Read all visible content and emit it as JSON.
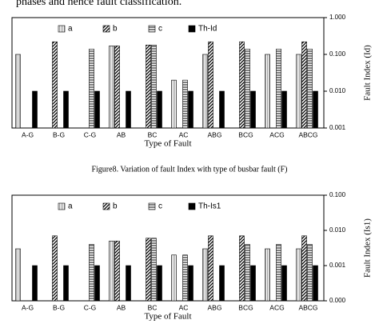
{
  "top_text": "phases and hence fault classification.",
  "caption": "Figure8. Variation of fault Index with type of busbar fault (F)",
  "chart_data": [
    {
      "type": "bar",
      "log_scale": true,
      "legend": "top-left",
      "x_label": "Type of Fault",
      "y_label": "Fault Index (Id)",
      "categories": [
        "A-G",
        "B-G",
        "C-G",
        "AB",
        "BC",
        "AC",
        "ABG",
        "BCG",
        "ACG",
        "ABCG"
      ],
      "series": [
        {
          "name": "a",
          "color": "#000000",
          "values": [
            0.1,
            null,
            null,
            0.17,
            null,
            0.02,
            0.1,
            null,
            0.1,
            0.1
          ]
        },
        {
          "name": "b",
          "color": "#000000",
          "values": [
            null,
            0.22,
            null,
            0.17,
            0.18,
            null,
            0.22,
            0.22,
            null,
            0.22
          ]
        },
        {
          "name": "c",
          "color": "#000000",
          "values": [
            null,
            null,
            0.14,
            null,
            0.18,
            0.02,
            null,
            0.14,
            0.14,
            0.14
          ]
        },
        {
          "name": "Th-Id",
          "color": "#000000",
          "values": [
            0.01,
            0.01,
            0.01,
            0.01,
            0.01,
            0.01,
            0.01,
            0.01,
            0.01,
            0.01
          ]
        }
      ],
      "ylim": [
        0.001,
        1
      ],
      "yticks": [
        0.001,
        {
          "value": 0.01,
          "label": "0.010"
        },
        {
          "value": 0.1,
          "label": "0.100"
        },
        {
          "value": 1,
          "label": "1.000"
        }
      ]
    },
    {
      "type": "bar",
      "log_scale": true,
      "legend": "top-left",
      "x_label": "Type of Fault",
      "y_label": "Fault Index (Is1)",
      "categories": [
        "A-G",
        "B-G",
        "C-G",
        "AB",
        "BC",
        "AC",
        "ABG",
        "BCG",
        "ACG",
        "ABCG"
      ],
      "series": [
        {
          "name": "a",
          "color": "#000000",
          "values": [
            0.003,
            null,
            null,
            0.005,
            null,
            0.002,
            0.003,
            null,
            0.003,
            0.003
          ]
        },
        {
          "name": "b",
          "color": "#000000",
          "values": [
            null,
            0.007,
            null,
            0.005,
            0.006,
            null,
            0.007,
            0.007,
            null,
            0.007
          ]
        },
        {
          "name": "c",
          "color": "#000000",
          "values": [
            null,
            null,
            0.004,
            null,
            0.006,
            0.002,
            null,
            0.004,
            0.004,
            0.004
          ]
        },
        {
          "name": "Th-Is1",
          "color": "#000000",
          "values": [
            0.001,
            0.001,
            0.001,
            0.001,
            0.001,
            0.001,
            0.001,
            0.001,
            0.001,
            0.001
          ]
        }
      ],
      "ylim": [
        0.0001,
        0.1
      ],
      "yticks": [
        {
          "value": 0.0001,
          "label": "0.000"
        },
        0.001,
        {
          "value": 0.01,
          "label": "0.010"
        },
        {
          "value": 0.1,
          "label": "0.100"
        }
      ]
    }
  ]
}
